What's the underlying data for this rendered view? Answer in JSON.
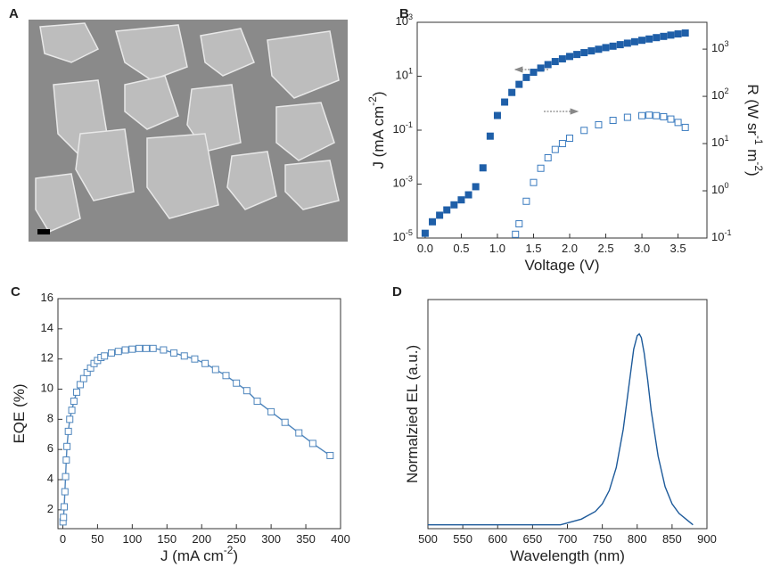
{
  "chart_data": [
    {
      "type": "image",
      "panel": "A"
    },
    {
      "type": "scatter",
      "panel": "B",
      "xlabel": "Voltage (V)",
      "ylabel": "J (mA cm^-2)",
      "y2label": "R (W sr^-1 m^-2)",
      "xlim": [
        -0.11,
        3.9
      ],
      "xticks": [
        {
          "value": 0,
          "label": "0.0"
        },
        0.5,
        {
          "value": 1,
          "label": "1.0"
        },
        1.5,
        {
          "value": 2,
          "label": "2.0"
        },
        2.5,
        {
          "value": 3,
          "label": "3.0"
        },
        3.5
      ],
      "ylog": true,
      "ylim": [
        1e-05,
        1000
      ],
      "yticks": [
        {
          "value": 1e-05,
          "label": "10^-5"
        },
        {
          "value": 0.001,
          "label": "10^-3"
        },
        {
          "value": 0.1,
          "label": "10^-1"
        },
        {
          "value": 10,
          "label": "10^1"
        },
        {
          "value": 1000,
          "label": "10^3"
        }
      ],
      "y2log": true,
      "y2lim": [
        0.1,
        3700
      ],
      "y2ticks": [
        {
          "value": 0.1,
          "label": "10^-1"
        },
        {
          "value": 1,
          "label": "10^0"
        },
        {
          "value": 10,
          "label": "10^1"
        },
        {
          "value": 100,
          "label": "10^2"
        },
        {
          "value": 1000,
          "label": "10^3"
        }
      ],
      "series": [
        {
          "color": "#1f5fa8",
          "marker": "filled-square",
          "x": [
            0,
            0.1,
            0.2,
            0.3,
            0.4,
            0.5,
            0.6,
            0.7,
            0.8,
            0.9,
            1.0,
            1.1,
            1.2,
            1.3,
            1.4,
            1.5,
            1.6,
            1.7,
            1.8,
            1.9,
            2.0,
            2.1,
            2.2,
            2.3,
            2.4,
            2.5,
            2.6,
            2.7,
            2.8,
            2.9,
            3.0,
            3.1,
            3.2,
            3.3,
            3.4,
            3.5,
            3.6
          ],
          "values": [
            1.5e-05,
            4e-05,
            7e-05,
            0.00011,
            0.00017,
            0.00026,
            0.0004,
            0.0008,
            0.004,
            0.06,
            0.35,
            1.1,
            2.5,
            5,
            9,
            14,
            20,
            27,
            35,
            44,
            54,
            64,
            75,
            87,
            100,
            115,
            130,
            148,
            168,
            190,
            215,
            240,
            270,
            300,
            335,
            370,
            400
          ]
        },
        {
          "color": "#3a7bbf",
          "marker": "open-square",
          "axis": "y2",
          "x": [
            1.25,
            1.3,
            1.4,
            1.5,
            1.6,
            1.7,
            1.8,
            1.9,
            2.0,
            2.2,
            2.4,
            2.6,
            2.8,
            3.0,
            3.1,
            3.2,
            3.3,
            3.4,
            3.5,
            3.6
          ],
          "values": [
            0.12,
            0.2,
            0.6,
            1.5,
            3,
            5,
            7.5,
            10,
            13,
            19,
            25,
            31,
            36,
            39,
            40,
            39,
            37,
            33,
            28,
            22
          ]
        }
      ]
    },
    {
      "type": "line",
      "panel": "C",
      "xlabel": "J (mA cm^-2)",
      "ylabel": "EQE (%)",
      "xlim": [
        -7,
        400
      ],
      "xticks": [
        0,
        50,
        100,
        150,
        200,
        250,
        300,
        350,
        400
      ],
      "ylim": [
        0.75,
        16
      ],
      "yticks": [
        2,
        4,
        6,
        8,
        10,
        12,
        14,
        16
      ],
      "series": [
        {
          "color": "#4f86bd",
          "marker": "open-square",
          "x": [
            0.3,
            1,
            2,
            3,
            4,
            5,
            6,
            8,
            10,
            13,
            16,
            20,
            25,
            30,
            35,
            40,
            45,
            50,
            55,
            60,
            70,
            80,
            90,
            100,
            110,
            120,
            130,
            145,
            160,
            175,
            190,
            205,
            220,
            235,
            250,
            265,
            280,
            300,
            320,
            340,
            360,
            385
          ],
          "values": [
            1.2,
            1.5,
            2.2,
            3.2,
            4.2,
            5.3,
            6.2,
            7.2,
            8,
            8.6,
            9.2,
            9.8,
            10.3,
            10.7,
            11.1,
            11.4,
            11.7,
            11.9,
            12.1,
            12.2,
            12.4,
            12.5,
            12.6,
            12.65,
            12.7,
            12.7,
            12.7,
            12.6,
            12.4,
            12.2,
            12.0,
            11.7,
            11.3,
            10.9,
            10.4,
            9.9,
            9.2,
            8.5,
            7.8,
            7.1,
            6.4,
            5.6
          ]
        }
      ]
    },
    {
      "type": "line",
      "panel": "D",
      "xlabel": "Wavelength (nm)",
      "ylabel": "Normalzied EL (a.u.)",
      "xlim": [
        500,
        900
      ],
      "xticks": [
        500,
        550,
        600,
        650,
        700,
        750,
        800,
        850,
        900
      ],
      "ylim": [
        -0.02,
        1.18
      ],
      "series": [
        {
          "color": "#1d5a9a",
          "x": [
            500,
            600,
            690,
            700,
            720,
            740,
            750,
            760,
            770,
            780,
            790,
            795,
            800,
            803,
            806,
            810,
            815,
            820,
            830,
            840,
            850,
            860,
            870,
            880
          ],
          "values": [
            0,
            0,
            0,
            0.01,
            0.03,
            0.07,
            0.11,
            0.18,
            0.3,
            0.5,
            0.78,
            0.92,
            0.99,
            1.0,
            0.98,
            0.9,
            0.76,
            0.6,
            0.36,
            0.2,
            0.11,
            0.06,
            0.03,
            0
          ]
        }
      ]
    }
  ]
}
